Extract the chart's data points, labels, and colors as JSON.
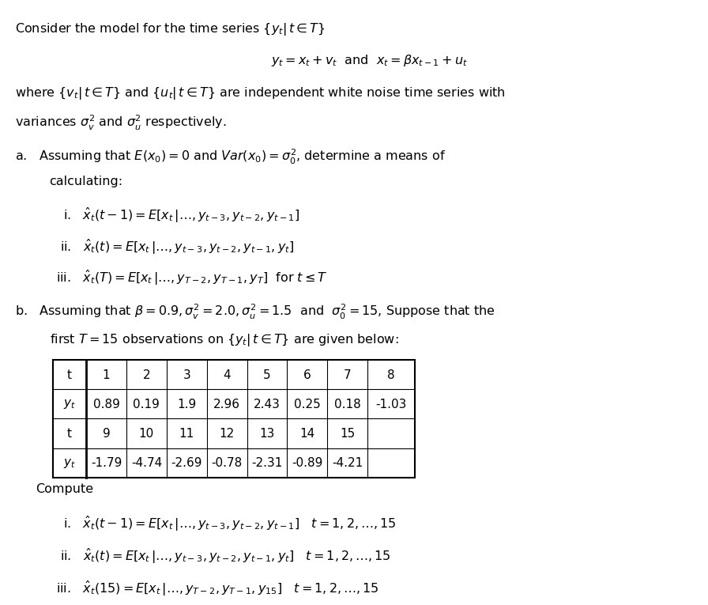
{
  "title_line": "Consider the model for the time series $\\{y_t|\\, t \\in T\\}$",
  "equation_line": "$y_t = x_t + v_t$  and  $x_t = \\beta x_{t-1} + u_t$",
  "where_line": "where $\\{v_t|\\, t \\in T\\}$ and $\\{u_t|\\, t \\in T\\}$ are independent white noise time series with",
  "variances_line": "variances $\\sigma_v^2$ and $\\sigma_u^2$ respectively.",
  "part_a_header": "a.   Assuming that $E(x_0) = 0$ and $\\mathit{Var}(x_0) = \\sigma_0^2$, determine a means of",
  "part_a_sub": "calculating:",
  "part_a_i": "i.   $\\hat{x}_t(t-1) = E\\left[x_t\\,|\\ldots, y_{t-3}, y_{t-2}, y_{t-1}\\right]$",
  "part_a_ii": "ii.   $\\hat{x}_t(t) = E\\left[x_t\\,|\\ldots, y_{t-3}, y_{t-2}, y_{t-1}, y_t\\right]$",
  "part_a_iii": "iii.   $\\hat{x}_t(T) = E\\left[x_t\\,|\\ldots, y_{T-2}, y_{T-1}, y_T\\right]$  for $t \\leq T$",
  "part_b_header1": "b.   Assuming that $\\beta = 0.9, \\sigma_v^2 = 2.0, \\sigma_u^2 = 1.5$  and  $\\sigma_0^2 = 15$, Suppose that the",
  "part_b_header2": "first $T = 15$ observations on $\\{y_t|\\, t \\in T\\}$ are given below:",
  "table_row1_t": [
    "t",
    "1",
    "2",
    "3",
    "4",
    "5",
    "6",
    "7",
    "8"
  ],
  "table_row2_y": [
    "$y_t$",
    "0.89",
    "0.19",
    "1.9",
    "2.96",
    "2.43",
    "0.25",
    "0.18",
    "-1.03"
  ],
  "table_row3_t": [
    "t",
    "9",
    "10",
    "11",
    "12",
    "13",
    "14",
    "15",
    ""
  ],
  "table_row4_y": [
    "$y_t$",
    "-1.79",
    "-4.74",
    "-2.69",
    "-0.78",
    "-2.31",
    "-0.89",
    "-4.21",
    ""
  ],
  "compute_header": "Compute",
  "compute_i": "i.   $\\hat{x}_t(t-1) = E\\left[x_t\\,|\\ldots, y_{t-3}, y_{t-2}, y_{t-1}\\right]$   $t = 1, 2, \\ldots, 15$",
  "compute_ii": "ii.   $\\hat{x}_t(t) = E\\left[x_t\\,|\\ldots, y_{t-3}, y_{t-2}, y_{t-1}, y_t\\right]$   $t = 1, 2, \\ldots, 15$",
  "compute_iii": "iii.   $\\hat{x}_t(15) = E\\left[x_t\\,|\\ldots, y_{T-2}, y_{T-1}, y_{15}\\right]$   $t = 1, 2, \\ldots, 15$",
  "bg_color": "#ffffff",
  "text_color": "#000000",
  "font_size": 11.5
}
